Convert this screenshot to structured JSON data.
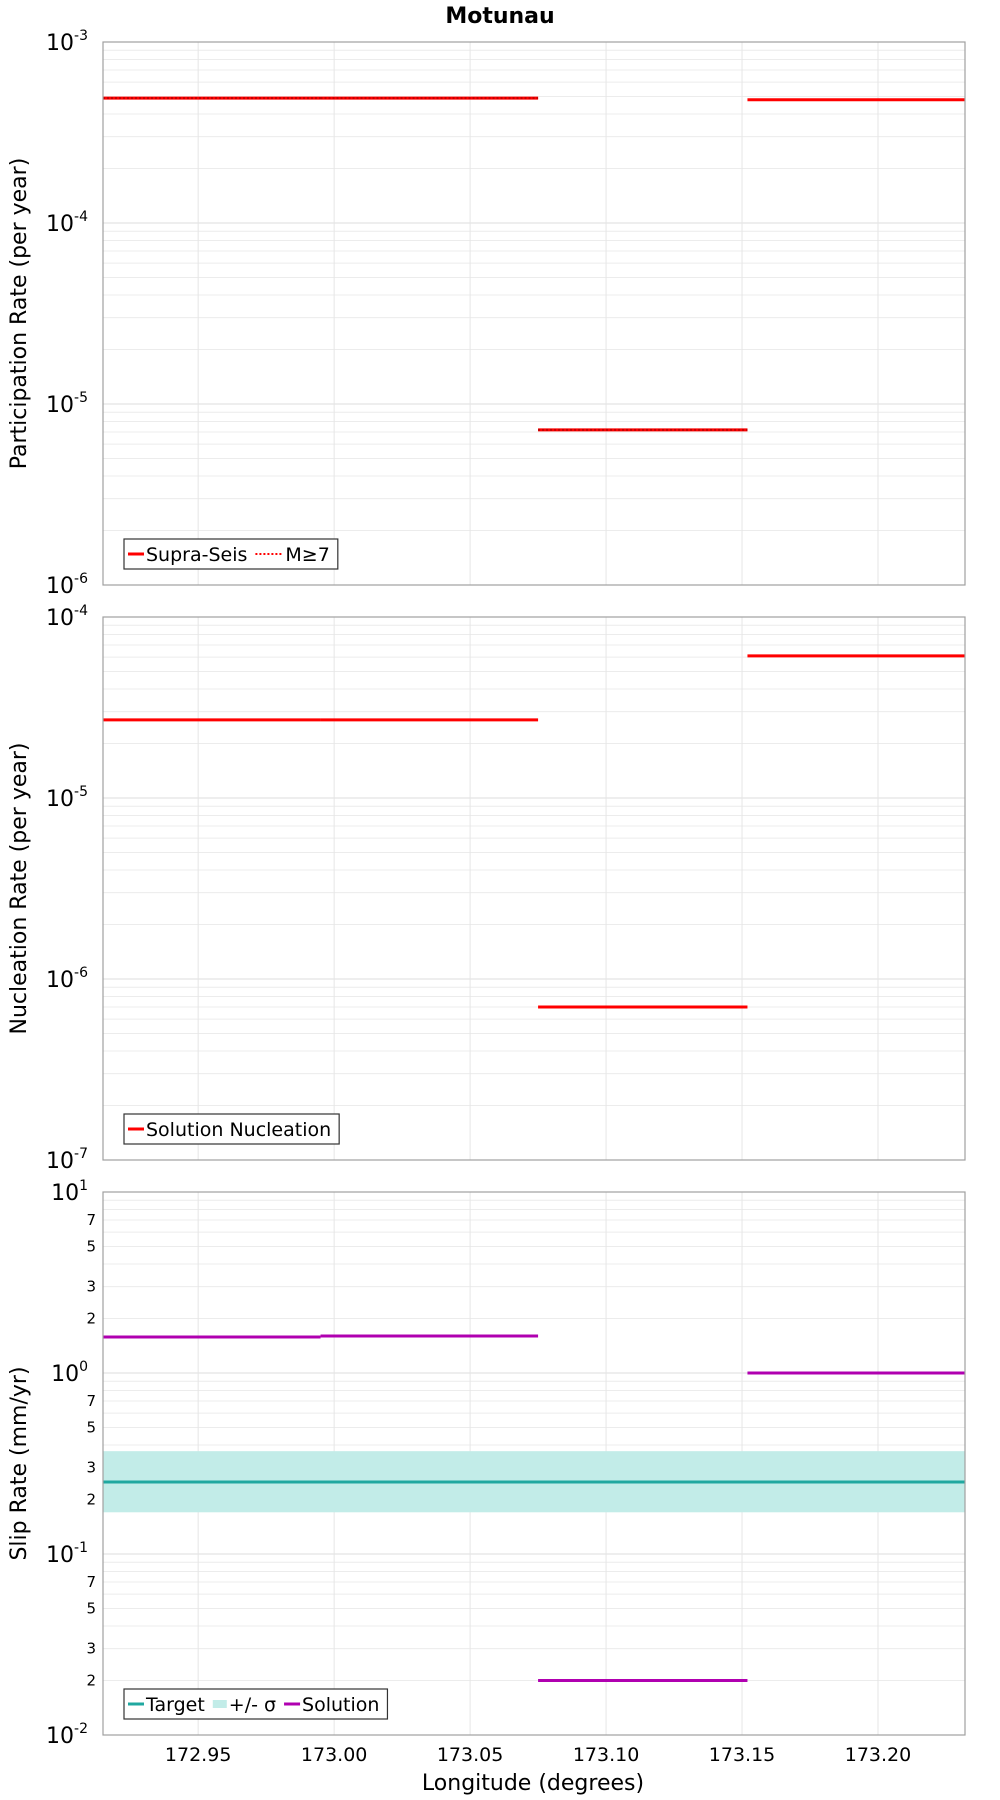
{
  "chart_data": {
    "title": "Motunau",
    "xlabel": "Longitude (degrees)",
    "xlim": [
      172.915,
      173.232
    ],
    "xticks": [
      {
        "v": 172.95,
        "label": "172.95"
      },
      {
        "v": 173.0,
        "label": "173.00"
      },
      {
        "v": 173.05,
        "label": "173.05"
      },
      {
        "v": 173.1,
        "label": "173.10"
      },
      {
        "v": 173.15,
        "label": "173.15"
      },
      {
        "v": 173.2,
        "label": "173.20"
      }
    ],
    "grid": true,
    "panels": [
      {
        "id": "participation",
        "type": "line",
        "yscale": "log",
        "ylabel": "Participation Rate (per year)",
        "ylim": [
          1e-06,
          0.001
        ],
        "major_ticks": [
          {
            "exp": -6,
            "base": "10",
            "sup": "-6"
          },
          {
            "exp": -5,
            "base": "10",
            "sup": "-5"
          },
          {
            "exp": -4,
            "base": "10",
            "sup": "-4"
          },
          {
            "exp": -3,
            "base": "10",
            "sup": "-3"
          }
        ],
        "minor_labels": [],
        "legend": {
          "position": "bottom-left",
          "items": [
            {
              "label": "Supra-Seis",
              "color": "#ff0000",
              "style": "solid"
            },
            {
              "label": "M≥7",
              "color": "#ff0000",
              "style": "dotted"
            }
          ]
        },
        "series": [
          {
            "name": "Supra-Seis",
            "color": "#ff0000",
            "style": "solid",
            "segments": [
              {
                "x": [
                  172.915,
                  172.995
                ],
                "y": 0.00049
              },
              {
                "x": [
                  172.995,
                  173.075
                ],
                "y": 0.00049
              },
              {
                "x": [
                  173.075,
                  173.152
                ],
                "y": 7.2e-06
              },
              {
                "x": [
                  173.152,
                  173.232
                ],
                "y": 0.00048
              }
            ]
          },
          {
            "name": "M≥7",
            "color": "#ff0000",
            "style": "dotted",
            "segments": [
              {
                "x": [
                  172.915,
                  172.995
                ],
                "y": 0.00049
              },
              {
                "x": [
                  172.995,
                  173.075
                ],
                "y": 0.00049
              },
              {
                "x": [
                  173.075,
                  173.152
                ],
                "y": 7.2e-06
              }
            ]
          }
        ]
      },
      {
        "id": "nucleation",
        "type": "line",
        "yscale": "log",
        "ylabel": "Nucleation Rate (per year)",
        "ylim": [
          1e-07,
          0.0001
        ],
        "major_ticks": [
          {
            "exp": -7,
            "base": "10",
            "sup": "-7"
          },
          {
            "exp": -6,
            "base": "10",
            "sup": "-6"
          },
          {
            "exp": -5,
            "base": "10",
            "sup": "-5"
          },
          {
            "exp": -4,
            "base": "10",
            "sup": "-4"
          }
        ],
        "minor_labels": [],
        "legend": {
          "position": "bottom-left",
          "items": [
            {
              "label": "Solution Nucleation",
              "color": "#ff0000",
              "style": "solid"
            }
          ]
        },
        "series": [
          {
            "name": "Solution Nucleation",
            "color": "#ff0000",
            "style": "solid",
            "segments": [
              {
                "x": [
                  172.915,
                  172.995
                ],
                "y": 2.7e-05
              },
              {
                "x": [
                  172.995,
                  173.075
                ],
                "y": 2.7e-05
              },
              {
                "x": [
                  173.075,
                  173.152
                ],
                "y": 7e-07
              },
              {
                "x": [
                  173.152,
                  173.232
                ],
                "y": 6.1e-05
              }
            ]
          }
        ]
      },
      {
        "id": "slip",
        "type": "line",
        "yscale": "log",
        "ylabel": "Slip Rate (mm/yr)",
        "ylim": [
          0.01,
          10
        ],
        "major_ticks": [
          {
            "exp": -2,
            "base": "10",
            "sup": "-2"
          },
          {
            "exp": -1,
            "base": "10",
            "sup": "-1"
          },
          {
            "exp": 0,
            "base": "10",
            "sup": "0"
          },
          {
            "exp": 1,
            "base": "10",
            "sup": "1"
          }
        ],
        "minor_labels": [
          {
            "v": 0.02,
            "label": "2"
          },
          {
            "v": 0.03,
            "label": "3"
          },
          {
            "v": 0.05,
            "label": "5"
          },
          {
            "v": 0.07,
            "label": "7"
          },
          {
            "v": 0.2,
            "label": "2"
          },
          {
            "v": 0.3,
            "label": "3"
          },
          {
            "v": 0.5,
            "label": "5"
          },
          {
            "v": 0.7,
            "label": "7"
          },
          {
            "v": 2,
            "label": "2"
          },
          {
            "v": 3,
            "label": "3"
          },
          {
            "v": 5,
            "label": "5"
          },
          {
            "v": 7,
            "label": "7"
          }
        ],
        "legend": {
          "position": "bottom-left",
          "items": [
            {
              "label": "Target",
              "color": "#20a8a0",
              "style": "solid"
            },
            {
              "label": "+/- σ",
              "color": "#c2ece8",
              "style": "band"
            },
            {
              "label": "Solution",
              "color": "#b000b0",
              "style": "solid"
            }
          ]
        },
        "bands": [
          {
            "name": "+/- σ",
            "color": "#c2ece8",
            "x": [
              172.915,
              173.232
            ],
            "y": [
              0.17,
              0.37
            ]
          }
        ],
        "series": [
          {
            "name": "Target",
            "color": "#20a8a0",
            "style": "solid",
            "segments": [
              {
                "x": [
                  172.915,
                  173.232
                ],
                "y": 0.25
              }
            ]
          },
          {
            "name": "Solution",
            "color": "#b000b0",
            "style": "solid",
            "segments": [
              {
                "x": [
                  172.915,
                  172.995
                ],
                "y": 1.58
              },
              {
                "x": [
                  172.995,
                  173.075
                ],
                "y": 1.6
              },
              {
                "x": [
                  173.075,
                  173.152
                ],
                "y": 0.02
              },
              {
                "x": [
                  173.152,
                  173.232
                ],
                "y": 1.0
              }
            ]
          }
        ]
      }
    ]
  }
}
